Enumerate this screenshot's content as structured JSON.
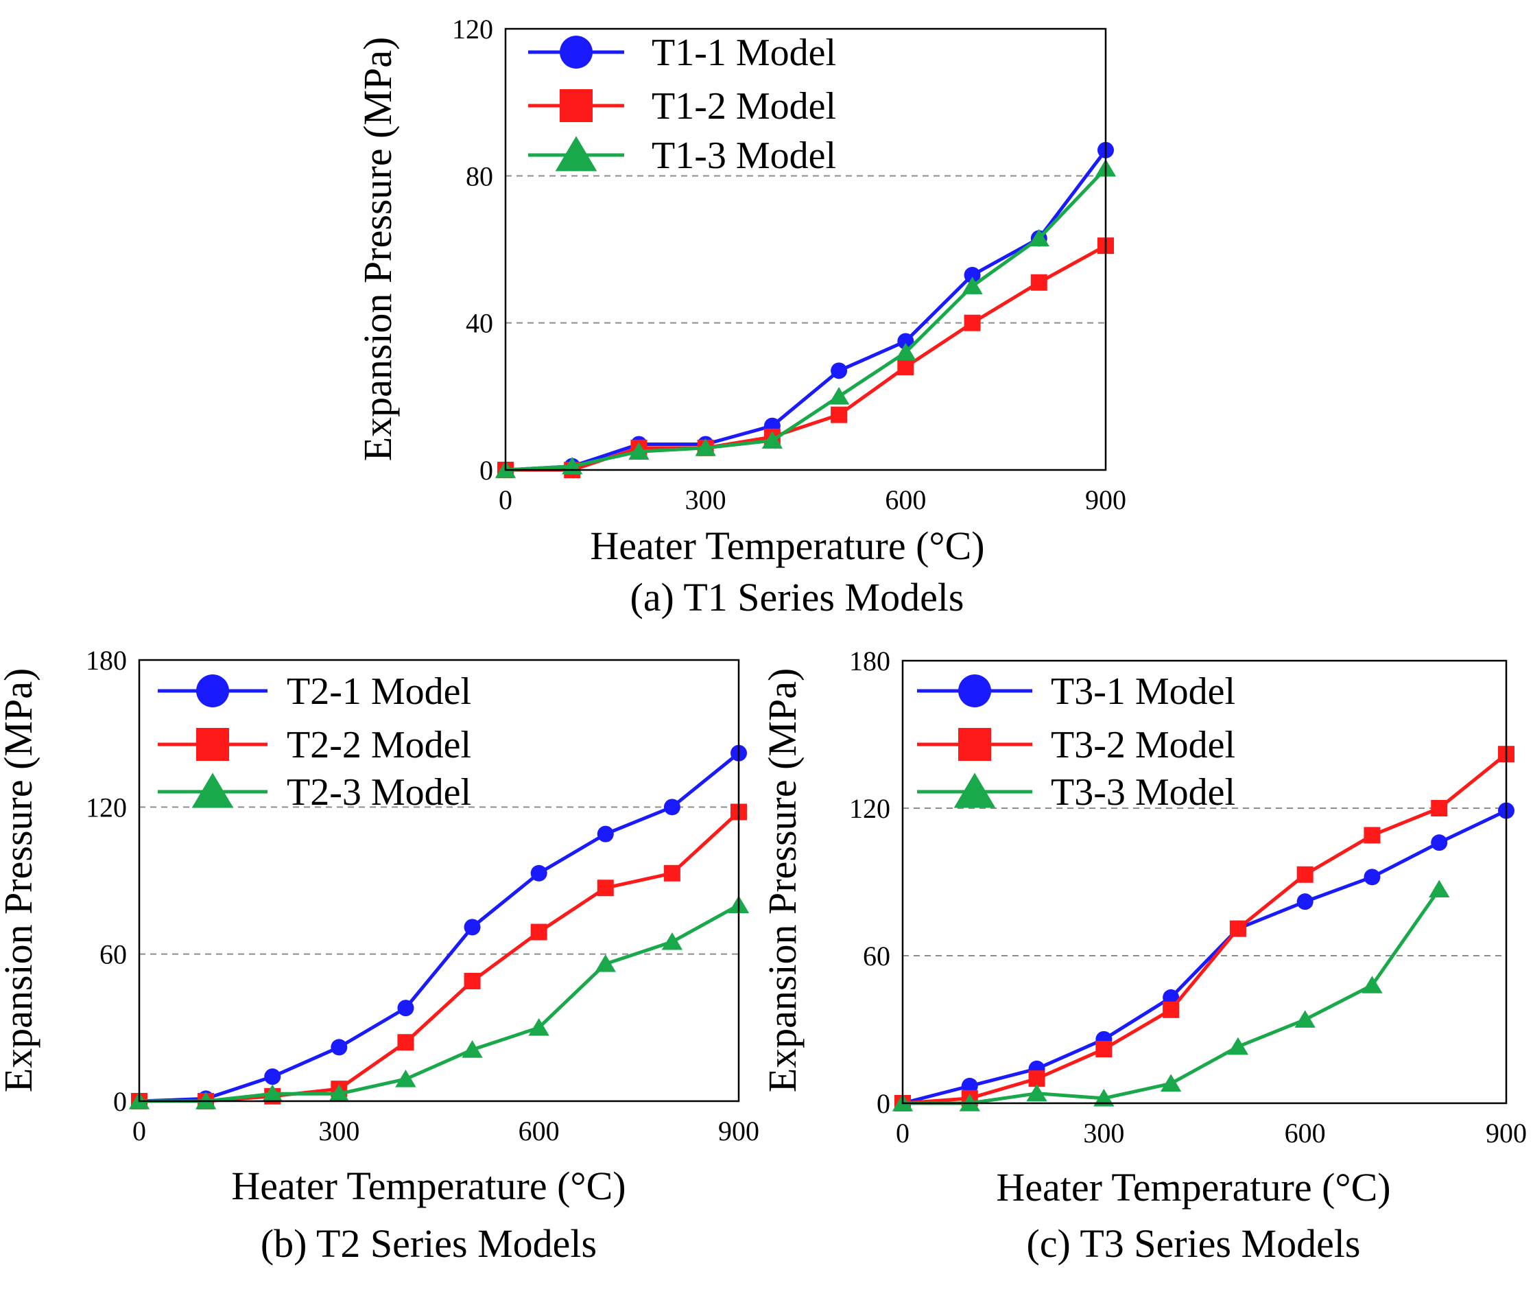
{
  "chart_data": [
    {
      "type": "line",
      "caption": "(a) T1 Series Models",
      "xlabel": "Heater Temperature (°C)",
      "ylabel": "Expansion Pressure (MPa)",
      "xlim": [
        0,
        900
      ],
      "ylim": [
        0,
        120
      ],
      "xticks": [
        0,
        300,
        600,
        900
      ],
      "yticks": [
        0,
        40,
        80,
        120
      ],
      "grid": "horizontal dashed at 40 and 80",
      "legend_position": "top-left",
      "x": [
        0,
        100,
        200,
        300,
        400,
        500,
        600,
        700,
        800,
        900
      ],
      "series": [
        {
          "name": "T1-1 Model",
          "color": "#1a1aff",
          "marker": "circle",
          "values": [
            0,
            1,
            7,
            7,
            12,
            27,
            35,
            53,
            63,
            87
          ]
        },
        {
          "name": "T1-2 Model",
          "color": "#ff1a1a",
          "marker": "square",
          "values": [
            0,
            0,
            6,
            6,
            9,
            15,
            28,
            40,
            51,
            61
          ]
        },
        {
          "name": "T1-3 Model",
          "color": "#19a84a",
          "marker": "triangle",
          "values": [
            0,
            1,
            5,
            6,
            8,
            20,
            32,
            50,
            63,
            82
          ]
        }
      ]
    },
    {
      "type": "line",
      "caption": "(b) T2 Series Models",
      "xlabel": "Heater Temperature (°C)",
      "ylabel": "Expansion Pressure (MPa)",
      "xlim": [
        0,
        900
      ],
      "ylim": [
        0,
        180
      ],
      "xticks": [
        0,
        300,
        600,
        900
      ],
      "yticks": [
        0,
        60,
        120,
        180
      ],
      "grid": "horizontal dashed at 60 and 120",
      "legend_position": "top-left",
      "x": [
        0,
        100,
        200,
        300,
        400,
        500,
        600,
        700,
        800,
        900
      ],
      "series": [
        {
          "name": "T2-1 Model",
          "color": "#1a1aff",
          "marker": "circle",
          "values": [
            0,
            1,
            10,
            22,
            38,
            71,
            93,
            109,
            120,
            142
          ]
        },
        {
          "name": "T2-2 Model",
          "color": "#ff1a1a",
          "marker": "square",
          "values": [
            0,
            0,
            2,
            5,
            24,
            49,
            69,
            87,
            93,
            118
          ]
        },
        {
          "name": "T2-3 Model",
          "color": "#19a84a",
          "marker": "triangle",
          "values": [
            0,
            0,
            3,
            3,
            9,
            21,
            30,
            56,
            65,
            80
          ]
        }
      ]
    },
    {
      "type": "line",
      "caption": "(c) T3 Series Models",
      "xlabel": "Heater Temperature (°C)",
      "ylabel": "Expansion Pressure (MPa)",
      "xlim": [
        0,
        900
      ],
      "ylim": [
        0,
        180
      ],
      "xticks": [
        0,
        300,
        600,
        900
      ],
      "yticks": [
        0,
        60,
        120,
        180
      ],
      "grid": "horizontal dashed at 60 and 120",
      "legend_position": "top-left",
      "x": [
        0,
        100,
        200,
        300,
        400,
        500,
        600,
        700,
        800,
        900
      ],
      "series": [
        {
          "name": "T3-1 Model",
          "color": "#1a1aff",
          "marker": "circle",
          "values": [
            0,
            7,
            14,
            26,
            43,
            71,
            82,
            92,
            106,
            119
          ]
        },
        {
          "name": "T3-2 Model",
          "color": "#ff1a1a",
          "marker": "square",
          "values": [
            0,
            2,
            10,
            22,
            38,
            71,
            93,
            109,
            120,
            142
          ]
        },
        {
          "name": "T3-3 Model",
          "color": "#19a84a",
          "marker": "triangle",
          "values": [
            0,
            0,
            4,
            2,
            8,
            23,
            34,
            48,
            87,
            null
          ]
        }
      ]
    }
  ]
}
